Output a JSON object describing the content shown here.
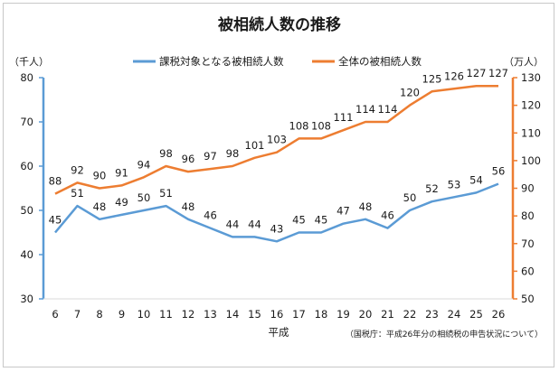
{
  "chart_data": {
    "type": "line",
    "title": "被相続人数の推移",
    "xlabel": "平成",
    "source_note": "（国税庁：平成26年分の相続税の申告状況について）",
    "categories": [
      "6",
      "7",
      "8",
      "9",
      "10",
      "11",
      "12",
      "13",
      "14",
      "15",
      "16",
      "17",
      "18",
      "19",
      "20",
      "21",
      "22",
      "23",
      "24",
      "25",
      "26"
    ],
    "left_axis": {
      "unit": "（千人）",
      "ylim": [
        30,
        80
      ],
      "ticks": [
        "30",
        "40",
        "50",
        "60",
        "70",
        "80"
      ],
      "color": "#5b9bd5"
    },
    "right_axis": {
      "unit": "（万人）",
      "ylim": [
        50,
        130
      ],
      "ticks": [
        "50",
        "60",
        "70",
        "80",
        "90",
        "100",
        "110",
        "120",
        "130"
      ],
      "color": "#ed7d31"
    },
    "series": [
      {
        "name": "課税対象となる被相続人数",
        "axis": "left",
        "color": "#5b9bd5",
        "values": [
          45,
          51,
          48,
          49,
          50,
          51,
          48,
          46,
          44,
          44,
          43,
          45,
          45,
          47,
          48,
          46,
          50,
          52,
          53,
          54,
          56
        ]
      },
      {
        "name": "全体の被相続人数",
        "axis": "right",
        "color": "#ed7d31",
        "values": [
          88,
          92,
          90,
          91,
          94,
          98,
          96,
          97,
          98,
          101,
          103,
          108,
          108,
          111,
          114,
          114,
          120,
          125,
          126,
          127,
          127
        ]
      }
    ],
    "grid": false,
    "legend": "top"
  }
}
